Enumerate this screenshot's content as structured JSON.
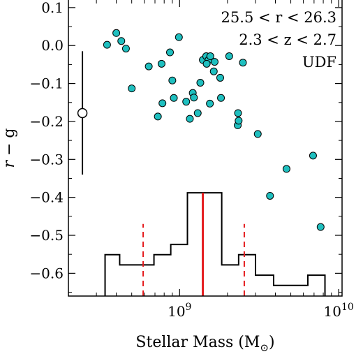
{
  "chart_data": {
    "type": "scatter",
    "xlabel_main": "Stellar Mass (M",
    "xlabel_sub": "⊙",
    "xlabel_close": ")",
    "ylabel_main": "r",
    "ylabel_rest": " − g",
    "xscale": "log",
    "xlim": [
      200000000.0,
      10500000000.0
    ],
    "ylim": [
      -0.66,
      0.12
    ],
    "x_ticks": [
      {
        "value": 1000000000.0,
        "base": "10",
        "exp": "9"
      },
      {
        "value": 10000000000.0,
        "base": "10",
        "exp": "10"
      }
    ],
    "y_ticks": [
      {
        "value": 0.1,
        "label": "0.1"
      },
      {
        "value": 0.0,
        "label": "0.0"
      },
      {
        "value": -0.1,
        "label": "−0.1"
      },
      {
        "value": -0.2,
        "label": "−0.2"
      },
      {
        "value": -0.3,
        "label": "−0.3"
      },
      {
        "value": -0.4,
        "label": "−0.4"
      },
      {
        "value": -0.5,
        "label": "−0.5"
      },
      {
        "value": -0.6,
        "label": "−0.6"
      }
    ],
    "annotation_lines": [
      "25.5 < r < 26.3",
      "2.3 < z < 2.7",
      "UDF"
    ],
    "colors": {
      "points": "#1fbfbf",
      "points_edge": "#000000",
      "histogram": "#000000",
      "median": "#e41a1c"
    },
    "points": [
      {
        "x": 350000000.0,
        "y": 0.002
      },
      {
        "x": 400000000.0,
        "y": 0.033
      },
      {
        "x": 430000000.0,
        "y": 0.012
      },
      {
        "x": 460000000.0,
        "y": -0.008
      },
      {
        "x": 500000000.0,
        "y": -0.113
      },
      {
        "x": 640000000.0,
        "y": -0.055
      },
      {
        "x": 730000000.0,
        "y": -0.187
      },
      {
        "x": 780000000.0,
        "y": -0.152
      },
      {
        "x": 770000000.0,
        "y": -0.048
      },
      {
        "x": 870000000.0,
        "y": -0.018
      },
      {
        "x": 920000000.0,
        "y": -0.138
      },
      {
        "x": 900000000.0,
        "y": -0.092
      },
      {
        "x": 990000000.0,
        "y": 0.022
      },
      {
        "x": 1100000000.0,
        "y": -0.148
      },
      {
        "x": 1160000000.0,
        "y": -0.193
      },
      {
        "x": 1210000000.0,
        "y": -0.125
      },
      {
        "x": 1230000000.0,
        "y": -0.137
      },
      {
        "x": 1300000000.0,
        "y": -0.178
      },
      {
        "x": 1350000000.0,
        "y": -0.098
      },
      {
        "x": 1400000000.0,
        "y": -0.038
      },
      {
        "x": 1470000000.0,
        "y": -0.028
      },
      {
        "x": 1520000000.0,
        "y": -0.038
      },
      {
        "x": 1480000000.0,
        "y": -0.048
      },
      {
        "x": 1560000000.0,
        "y": -0.028
      },
      {
        "x": 1550000000.0,
        "y": -0.153
      },
      {
        "x": 1640000000.0,
        "y": -0.068
      },
      {
        "x": 1660000000.0,
        "y": -0.043
      },
      {
        "x": 1800000000.0,
        "y": -0.085
      },
      {
        "x": 1820000000.0,
        "y": -0.138
      },
      {
        "x": 2050000000.0,
        "y": -0.028
      },
      {
        "x": 2330000000.0,
        "y": -0.178
      },
      {
        "x": 2320000000.0,
        "y": -0.21
      },
      {
        "x": 2350000000.0,
        "y": -0.198
      },
      {
        "x": 2500000000.0,
        "y": -0.045
      },
      {
        "x": 3100000000.0,
        "y": -0.233
      },
      {
        "x": 3700000000.0,
        "y": -0.396
      },
      {
        "x": 4700000000.0,
        "y": -0.325
      },
      {
        "x": 6900000000.0,
        "y": -0.29
      },
      {
        "x": 7700000000.0,
        "y": -0.478
      }
    ],
    "error_bar": {
      "x": 245000000.0,
      "y": -0.178,
      "y_low": -0.34,
      "y_high": -0.015
    },
    "histogram": {
      "edges": [
        340000000.0,
        420000000.0,
        540000000.0,
        690000000.0,
        880000000.0,
        1120000000.0,
        1440000000.0,
        1840000000.0,
        2350000000.0,
        3000000000.0,
        3900000000.0,
        5000000000.0,
        6400000000.0,
        8200000000.0
      ],
      "tops": [
        -0.551,
        -0.578,
        -0.578,
        -0.551,
        -0.524,
        -0.388,
        -0.388,
        -0.578,
        -0.551,
        -0.605,
        -0.632,
        -0.632,
        -0.605
      ]
    },
    "median_line": {
      "x": 1400000000.0,
      "y_top": -0.388
    },
    "percentile_lines": [
      {
        "x": 590000000.0,
        "y_top": -0.47
      },
      {
        "x": 2550000000.0,
        "y_top": -0.47
      }
    ],
    "grid": false,
    "legend": "none"
  }
}
